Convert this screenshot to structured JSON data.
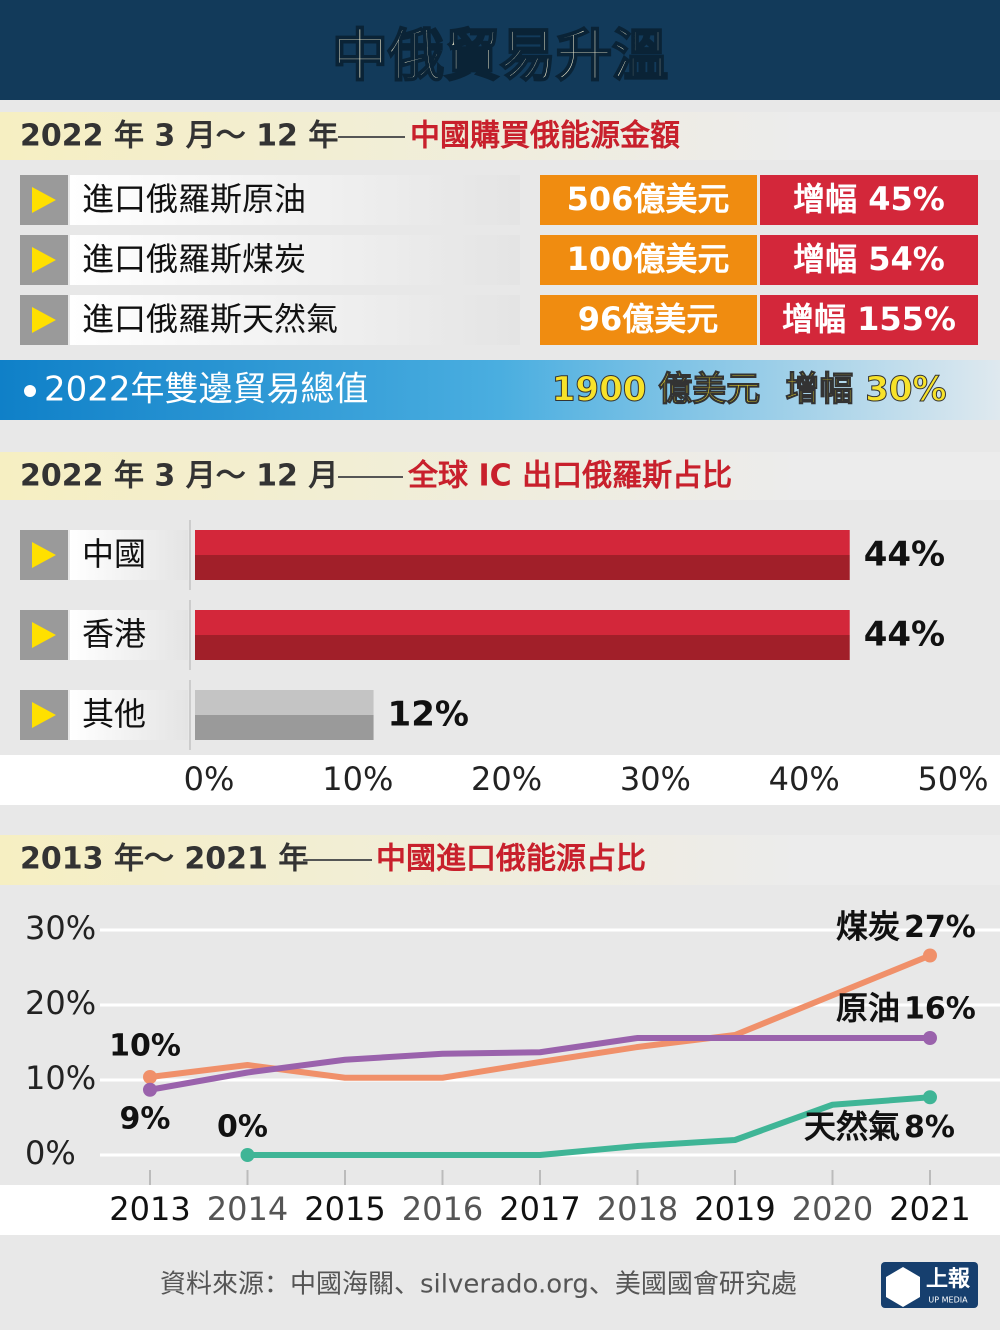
{
  "header": {
    "title": "中俄貿易升溫"
  },
  "energy": {
    "period": "2022 年 3 月～ 12 年",
    "subject": "中國購買俄能源金額",
    "rows": [
      {
        "label": "進口俄羅斯原油",
        "amount": "506億美元",
        "growth": "增幅 45%"
      },
      {
        "label": "進口俄羅斯煤炭",
        "amount": "100億美元",
        "growth": "增幅 54%"
      },
      {
        "label": "進口俄羅斯天然氣",
        "amount": "96億美元",
        "growth": "增幅 155%"
      }
    ],
    "total": {
      "label": "2022年雙邊貿易總值",
      "amount": "1900 億美元",
      "growth": "增幅 30%"
    }
  },
  "chart_data": [
    {
      "type": "hbar",
      "title": "2022 年 3 月～ 12 月",
      "subtitle": "全球 IC 出口俄羅斯占比",
      "categories": [
        "中國",
        "香港",
        "其他"
      ],
      "values": [
        44,
        44,
        12
      ],
      "value_labels": [
        "44%",
        "44%",
        "12%"
      ],
      "colors": [
        "#d3273a",
        "#d3273a",
        "#c4c4c4"
      ],
      "shades": [
        "#a11f29",
        "#a11f29",
        "#9a9a9a"
      ],
      "xlim": [
        0,
        50
      ],
      "xticks": [
        {
          "value": 0,
          "label": "0%"
        },
        {
          "value": 10,
          "label": "10%"
        },
        {
          "value": 20,
          "label": "20%"
        },
        {
          "value": 30,
          "label": "30%"
        },
        {
          "value": 40,
          "label": "40%"
        },
        {
          "value": 50,
          "label": "50%"
        }
      ]
    },
    {
      "type": "line",
      "title": "2013 年～ 2021 年",
      "subtitle": "中國進口俄能源占比",
      "categories": [
        "2013",
        "2014",
        "2015",
        "2016",
        "2017",
        "2018",
        "2019",
        "2020",
        "2021"
      ],
      "ylim": [
        0,
        30
      ],
      "yticks": [
        {
          "value": 0,
          "label": "0%"
        },
        {
          "value": 10,
          "label": "10%"
        },
        {
          "value": 20,
          "label": "20%"
        },
        {
          "value": 30,
          "label": "30%"
        }
      ],
      "grid": true,
      "series": [
        {
          "name": "煤炭",
          "color": "#f0906a",
          "values": [
            10.4,
            12,
            10.3,
            10.3,
            12.4,
            14.4,
            16,
            21.3,
            26.6
          ],
          "value_labels": [
            "10%",
            null,
            null,
            null,
            null,
            null,
            null,
            null,
            "27%"
          ]
        },
        {
          "name": "原油",
          "color": "#9a62ac",
          "values": [
            8.7,
            11,
            12.7,
            13.5,
            13.7,
            15.6,
            15.6,
            15.6,
            15.6
          ],
          "value_labels": [
            "9%",
            null,
            null,
            null,
            null,
            null,
            null,
            null,
            "16%"
          ]
        },
        {
          "name": "天然氣",
          "color": "#3fb596",
          "values": [
            null,
            0,
            0,
            0,
            0,
            1.2,
            2,
            6.7,
            7.7
          ],
          "value_labels": [
            null,
            "0%",
            null,
            null,
            null,
            null,
            null,
            null,
            "8%"
          ]
        }
      ]
    }
  ],
  "footer": {
    "source": "資料來源：中國海關、silverado.org、美國國會研究處",
    "logo": "上報",
    "logo_sub": "UP MEDIA"
  }
}
